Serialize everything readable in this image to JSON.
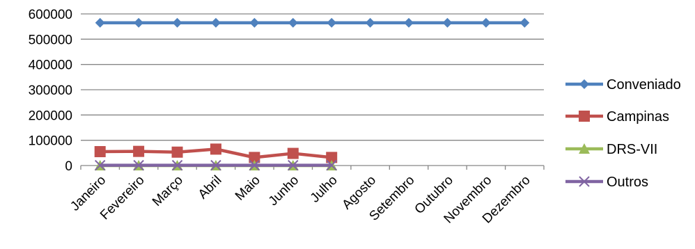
{
  "chart_data": {
    "type": "line",
    "categories": [
      "Janeiro",
      "Fevereiro",
      "Março",
      "Abril",
      "Maio",
      "Junho",
      "Julho",
      "Agosto",
      "Setembro",
      "Outubro",
      "Novembro",
      "Dezembro"
    ],
    "ylim": [
      0,
      600000
    ],
    "yticks": [
      0,
      100000,
      200000,
      300000,
      400000,
      500000,
      600000
    ],
    "grid": true,
    "legend_position": "right",
    "series": [
      {
        "name": "Conveniado",
        "color": "#4F81BD",
        "marker": "diamond",
        "values": [
          565000,
          565000,
          565000,
          565000,
          565000,
          565000,
          565000,
          565000,
          565000,
          565000,
          565000,
          565000
        ]
      },
      {
        "name": "Campinas",
        "color": "#C0504D",
        "marker": "square",
        "values": [
          55000,
          56000,
          53000,
          65000,
          32000,
          48000,
          32000,
          null,
          null,
          null,
          null,
          null
        ]
      },
      {
        "name": "DRS-VII",
        "color": "#9BBB59",
        "marker": "triangle",
        "values": [
          0,
          0,
          0,
          0,
          0,
          0,
          0,
          null,
          null,
          null,
          null,
          null
        ]
      },
      {
        "name": "Outros",
        "color": "#8064A2",
        "marker": "x",
        "values": [
          1000,
          1000,
          1000,
          1000,
          1000,
          1000,
          1000,
          null,
          null,
          null,
          null,
          null
        ]
      }
    ]
  }
}
